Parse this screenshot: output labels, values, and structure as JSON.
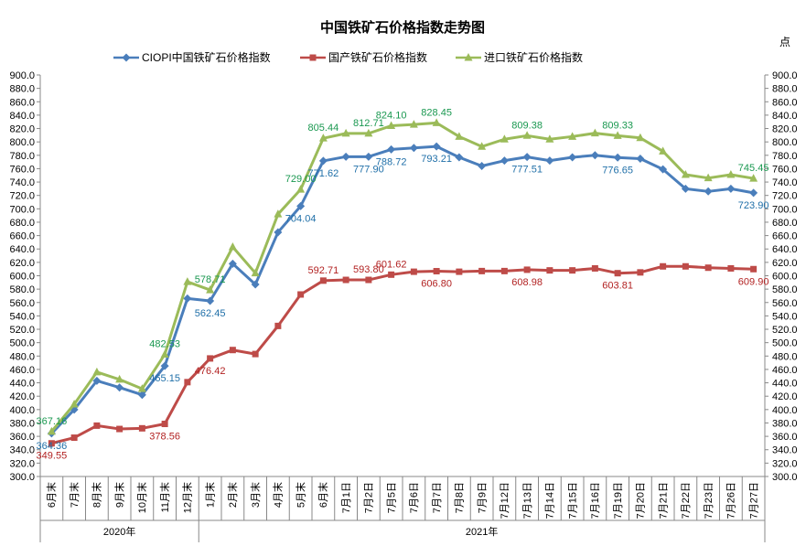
{
  "chart_data": {
    "type": "line",
    "title": "中国铁矿石价格指数走势图",
    "unit": "点",
    "ylim": [
      300,
      900
    ],
    "y_step": 20,
    "y_tick_labels": [
      "300.0",
      "320.0",
      "340.0",
      "360.0",
      "380.0",
      "400.0",
      "420.0",
      "440.0",
      "460.0",
      "480.0",
      "500.0",
      "520.0",
      "540.0",
      "560.0",
      "580.0",
      "600.0",
      "620.0",
      "640.0",
      "660.0",
      "680.0",
      "700.0",
      "720.0",
      "740.0",
      "760.0",
      "780.0",
      "800.0",
      "820.0",
      "840.0",
      "860.0",
      "880.0",
      "900.0"
    ],
    "grid": false,
    "legend_position": "top",
    "categories": [
      "6月末",
      "7月末",
      "8月末",
      "9月末",
      "10月末",
      "11月末",
      "12月末",
      "1月末",
      "2月末",
      "3月末",
      "4月末",
      "5月末",
      "6月末",
      "7月1日",
      "7月2日",
      "7月5日",
      "7月6日",
      "7月7日",
      "7月8日",
      "7月9日",
      "7月12日",
      "7月13日",
      "7月14日",
      "7月15日",
      "7月16日",
      "7月19日",
      "7月20日",
      "7月21日",
      "7月22日",
      "7月23日",
      "7月26日",
      "7月27日"
    ],
    "year_groups": [
      {
        "label": "2020年",
        "start": 0,
        "end": 6
      },
      {
        "label": "2021年",
        "start": 7,
        "end": 31
      }
    ],
    "series": [
      {
        "name": "CIOPI中国铁矿石价格指数",
        "color": "#4a7ebb",
        "marker": "diamond",
        "values": [
          364.36,
          400,
          443,
          433,
          422,
          465.15,
          566,
          562.45,
          618,
          587,
          665,
          704.04,
          771.62,
          777.9,
          777.9,
          788.72,
          791,
          793.21,
          777,
          764,
          772,
          777.51,
          772,
          777,
          780,
          776.65,
          775,
          759,
          730,
          726,
          730,
          723.9
        ],
        "labels": [
          {
            "index": 0,
            "text": "364.36"
          },
          {
            "index": 5,
            "text": "465.15"
          },
          {
            "index": 7,
            "text": "562.45"
          },
          {
            "index": 11,
            "text": "704.04"
          },
          {
            "index": 12,
            "text": "771.62"
          },
          {
            "index": 14,
            "text": "777.90"
          },
          {
            "index": 15,
            "text": "788.72"
          },
          {
            "index": 17,
            "text": "793.21"
          },
          {
            "index": 21,
            "text": "777.51"
          },
          {
            "index": 25,
            "text": "776.65"
          },
          {
            "index": 31,
            "text": "723.90"
          }
        ],
        "label_color": "#1f6fa8"
      },
      {
        "name": "国产铁矿石价格指数",
        "color": "#be4b48",
        "marker": "square",
        "values": [
          349.55,
          358,
          376,
          371,
          372,
          378.56,
          441,
          476.42,
          489,
          483,
          525,
          572,
          592.71,
          593.8,
          593.8,
          601.62,
          606,
          606.8,
          606,
          607,
          607,
          608.98,
          608,
          608,
          611,
          603.81,
          605,
          614,
          614,
          612,
          611,
          609.9
        ],
        "labels": [
          {
            "index": 0,
            "text": "349.55"
          },
          {
            "index": 5,
            "text": "378.56"
          },
          {
            "index": 7,
            "text": "476.42"
          },
          {
            "index": 12,
            "text": "592.71"
          },
          {
            "index": 14,
            "text": "593.80"
          },
          {
            "index": 15,
            "text": "601.62"
          },
          {
            "index": 17,
            "text": "606.80"
          },
          {
            "index": 21,
            "text": "608.98"
          },
          {
            "index": 25,
            "text": "603.81"
          },
          {
            "index": 31,
            "text": "609.90"
          }
        ],
        "label_color": "#b22222"
      },
      {
        "name": "进口铁矿石价格指数",
        "color": "#9bbb59",
        "marker": "triangle",
        "values": [
          367.16,
          408,
          456,
          445,
          431,
          482.53,
          591,
          578.71,
          643,
          604,
          692,
          729,
          805.44,
          812.71,
          812.71,
          824.1,
          826,
          828.45,
          808,
          793,
          804,
          809.38,
          804,
          808,
          813,
          809.33,
          806,
          786,
          751,
          746,
          751,
          745.45
        ],
        "labels": [
          {
            "index": 0,
            "text": "367.16"
          },
          {
            "index": 5,
            "text": "482.53"
          },
          {
            "index": 7,
            "text": "578.71"
          },
          {
            "index": 11,
            "text": "729.00"
          },
          {
            "index": 12,
            "text": "805.44"
          },
          {
            "index": 14,
            "text": "812.71"
          },
          {
            "index": 15,
            "text": "824.10"
          },
          {
            "index": 17,
            "text": "828.45"
          },
          {
            "index": 21,
            "text": "809.38"
          },
          {
            "index": 25,
            "text": "809.33"
          },
          {
            "index": 31,
            "text": "745.45"
          }
        ],
        "label_color": "#1a9850"
      }
    ]
  }
}
